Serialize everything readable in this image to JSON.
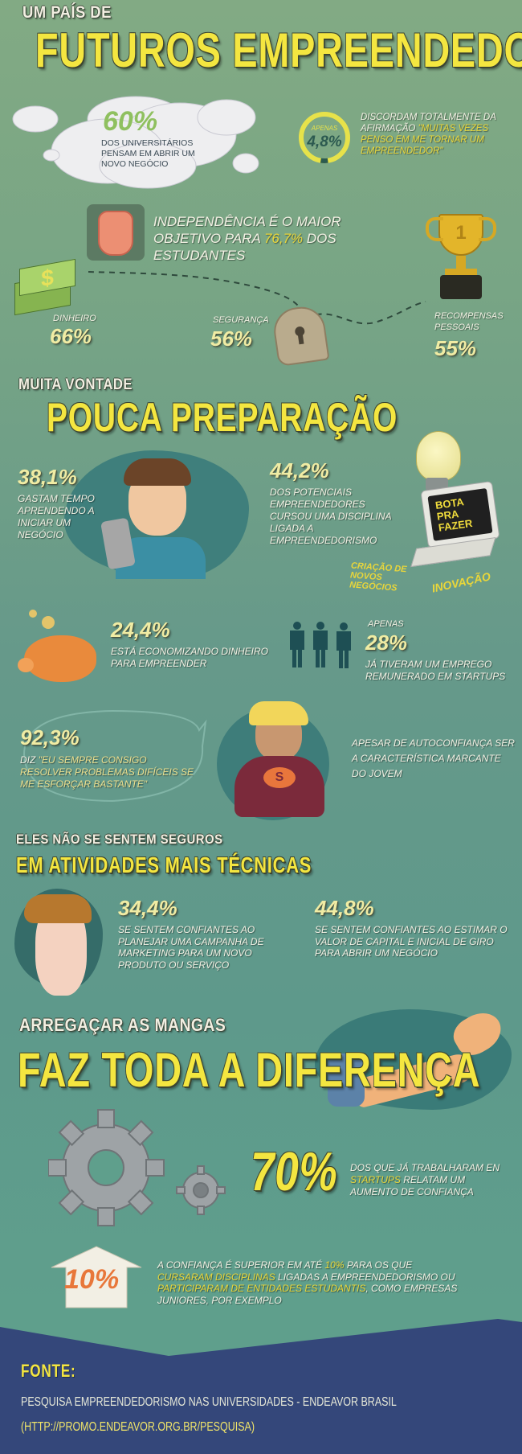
{
  "header": {
    "kicker": "UM PAÍS DE",
    "title": "FUTUROS EMPREENDEDORES"
  },
  "cloud": {
    "percent": "60%",
    "text": "DOS UNIVERSITÁRIOS PENSAM EM ABRIR UM NOVO NEGÓCIO"
  },
  "ring": {
    "label": "APENAS",
    "percent": "4,8%",
    "value": 4.8,
    "text": "DISCORDAM TOTALMENTE DA AFIRMAÇÃO",
    "quote": "\"MUITAS VEZES PENSO EM ME TORNAR UM EMPREENDEDOR\""
  },
  "independence": {
    "text_a": "INDEPENDÊNCIA É O MAIOR OBJETIVO PARA",
    "percent": "76,7%",
    "text_b": "DOS ESTUDANTES"
  },
  "goals": [
    {
      "label": "DINHEIRO",
      "percent": "66%",
      "icon": "money-icon"
    },
    {
      "label": "SEGURANÇA",
      "percent": "56%",
      "icon": "lock-icon"
    },
    {
      "label": "RECOMPENSAS PESSOAIS",
      "percent": "55%",
      "icon": "trophy-icon"
    }
  ],
  "section2": {
    "kicker": "MUITA VONTADE",
    "title": "POUCA PREPARAÇÃO"
  },
  "learning": {
    "percent": "38,1%",
    "text": "GASTAM TEMPO APRENDENDO A INICIAR UM NEGÓCIO"
  },
  "discipline": {
    "percent": "44,2%",
    "text": "DOS POTENCIAIS EMPREENDEDORES CURSOU UMA DISCIPLINA LIGADA A EMPREENDEDORISMO"
  },
  "laptop": {
    "screen": "BOTA PRA FAZER",
    "label_a": "CRIAÇÃO DE NOVOS NEGÓCIOS",
    "label_b": "INOVAÇÃO"
  },
  "saving": {
    "percent": "24,4%",
    "text": "ESTÁ ECONOMIZANDO DINHEIRO PARA EMPREENDER"
  },
  "startups": {
    "label": "APENAS",
    "percent": "28%",
    "text": "JÁ TIVERAM UM EMPREGO REMUNERADO EM STARTUPS"
  },
  "confidence": {
    "percent": "92,3%",
    "text_a": "DIZ",
    "quote": "\"EU SEMPRE CONSIGO RESOLVER PROBLEMAS DIFÍCEIS SE ME ESFORÇAR BASTANTE\"",
    "side": "APESAR DE AUTOCONFIANÇA SER A CARACTERÍSTICA MARCANTE DO JOVEM",
    "shirt": "S"
  },
  "section3": {
    "kicker": "ELES NÃO SE SENTEM SEGUROS",
    "title": "EM ATIVIDADES MAIS TÉCNICAS"
  },
  "marketing": {
    "percent": "34,4%",
    "text": "SE SENTEM CONFIANTES AO PLANEJAR UMA CAMPANHA DE MARKETING PARA UM NOVO PRODUTO OU SERVIÇO"
  },
  "capital": {
    "percent": "44,8%",
    "text": "SE SENTEM CONFIANTES AO ESTIMAR O VALOR DE CAPITAL E INICIAL DE GIRO PARA ABRIR UM NEGÓCIO"
  },
  "section4": {
    "kicker": "ARREGAÇAR AS MANGAS",
    "title": "FAZ TODA A DIFERENÇA"
  },
  "startup_conf": {
    "percent": "70%",
    "text_a": "DOS QUE JÁ TRABALHARAM EN",
    "hl": "STARTUPS",
    "text_b": "RELATAM UM AUMENTO DE CONFIANÇA"
  },
  "superior": {
    "arrow": "10%",
    "t1": "A CONFIANÇA É SUPERIOR EM ATÉ",
    "h1": "10%",
    "t2": "PARA OS QUE",
    "h2": "CURSARAM DISCIPLINAS",
    "t3": "LIGADAS A EMPREENDEDORISMO OU",
    "h3": "PARTICIPARAM DE ENTIDADES ESTUDANTIS",
    "t4": ", COMO EMPRESAS JUNIORES, POR EXEMPLO"
  },
  "footer": {
    "label": "FONTE:",
    "source": "PESQUISA EMPREENDEDORISMO NAS UNIVERSIDADES - ENDEAVOR BRASIL",
    "url": "(HTTP://PROMO.ENDEAVOR.ORG.BR/PESQUISA)"
  },
  "colors": {
    "title_yellow": "#f4e640",
    "pct_yellow": "#f0eca4",
    "highlight": "#e9d63a",
    "footer_navy": "#34477a"
  }
}
